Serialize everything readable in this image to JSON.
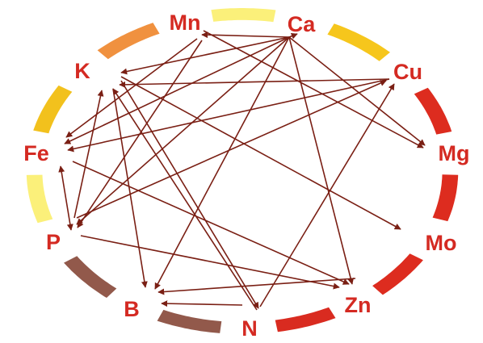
{
  "colors": {
    "label": "#d42a22",
    "arrow": "#7a1f14"
  },
  "nodes": [
    {
      "id": "Ca",
      "label": "Ca"
    },
    {
      "id": "Cu",
      "label": "Cu"
    },
    {
      "id": "Mg",
      "label": "Mg"
    },
    {
      "id": "Mo",
      "label": "Mo"
    },
    {
      "id": "Zn",
      "label": "Zn"
    },
    {
      "id": "N",
      "label": "N"
    },
    {
      "id": "B",
      "label": "B"
    },
    {
      "id": "P",
      "label": "P"
    },
    {
      "id": "Fe",
      "label": "Fe"
    },
    {
      "id": "K",
      "label": "K"
    },
    {
      "id": "Mn",
      "label": "Mn"
    }
  ],
  "ring_segments": [
    {
      "between": [
        "Mn",
        "Ca"
      ],
      "color": "#fbf07a"
    },
    {
      "between": [
        "Ca",
        "Cu"
      ],
      "color": "#f6c61c"
    },
    {
      "between": [
        "Cu",
        "Mg"
      ],
      "color": "#dd2c1f"
    },
    {
      "between": [
        "Mg",
        "Mo"
      ],
      "color": "#dd2c1f"
    },
    {
      "between": [
        "Mo",
        "Zn"
      ],
      "color": "#dd2c1f"
    },
    {
      "between": [
        "Zn",
        "N"
      ],
      "color": "#d92b20"
    },
    {
      "between": [
        "N",
        "B"
      ],
      "color": "#92594b"
    },
    {
      "between": [
        "B",
        "P"
      ],
      "color": "#92594b"
    },
    {
      "between": [
        "P",
        "Fe"
      ],
      "color": "#fbf07a"
    },
    {
      "between": [
        "Fe",
        "K"
      ],
      "color": "#f2c11d"
    },
    {
      "between": [
        "K",
        "Mn"
      ],
      "color": "#f0913f"
    }
  ],
  "edges": [
    {
      "from": "Ca",
      "to": "Mn",
      "bidirectional": false
    },
    {
      "from": "Ca",
      "to": "K",
      "bidirectional": false
    },
    {
      "from": "Ca",
      "to": "Fe",
      "bidirectional": false
    },
    {
      "from": "Ca",
      "to": "Mg",
      "bidirectional": false
    },
    {
      "from": "Ca",
      "to": "Zn",
      "bidirectional": false
    },
    {
      "from": "Ca",
      "to": "B",
      "bidirectional": false
    },
    {
      "from": "Ca",
      "to": "P",
      "bidirectional": false
    },
    {
      "from": "Mn",
      "to": "Fe",
      "bidirectional": false
    },
    {
      "from": "Mn",
      "to": "Mg",
      "bidirectional": false
    },
    {
      "from": "Mn",
      "to": "P",
      "bidirectional": false
    },
    {
      "from": "Cu",
      "to": "K",
      "bidirectional": false
    },
    {
      "from": "Cu",
      "to": "Fe",
      "bidirectional": false
    },
    {
      "from": "K",
      "to": "Mo",
      "bidirectional": false
    },
    {
      "from": "K",
      "to": "B",
      "bidirectional": false
    },
    {
      "from": "K",
      "to": "N",
      "bidirectional": false
    },
    {
      "from": "P",
      "to": "K",
      "bidirectional": false
    },
    {
      "from": "P",
      "to": "Cu",
      "bidirectional": false
    },
    {
      "from": "P",
      "to": "Zn",
      "bidirectional": false
    },
    {
      "from": "Fe",
      "to": "P",
      "bidirectional": true
    },
    {
      "from": "Fe",
      "to": "Zn",
      "bidirectional": false
    },
    {
      "from": "N",
      "to": "B",
      "bidirectional": false
    },
    {
      "from": "N",
      "to": "Cu",
      "bidirectional": false
    },
    {
      "from": "N",
      "to": "K",
      "bidirectional": false
    },
    {
      "from": "Zn",
      "to": "B",
      "bidirectional": false
    },
    {
      "from": "Ca",
      "to": "Cu",
      "bidirectional": false
    }
  ]
}
